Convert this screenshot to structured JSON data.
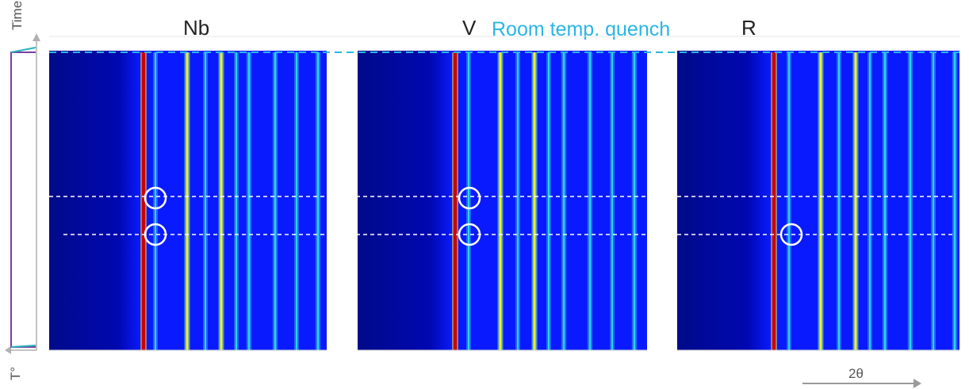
{
  "panels": [
    {
      "id": "nb",
      "label": "Nb",
      "circle_rows": [
        0,
        1
      ]
    },
    {
      "id": "v",
      "label": "V",
      "circle_rows": [
        0,
        1
      ]
    },
    {
      "id": "r",
      "label": "R",
      "circle_rows": [
        1
      ]
    }
  ],
  "annotation": {
    "text": "Room temp. quench",
    "color": "#29b6e6"
  },
  "axes": {
    "time_label": "Time",
    "temperature_label": "T°",
    "two_theta_label": "2θ"
  },
  "colors": {
    "background_dark": "#000066",
    "background_blue": "#0a1aff",
    "peak_hot": "#cc0000",
    "peak_yellow": "#f3ee2a",
    "peak_cyan": "#26d9e6",
    "marker": "#ffffff",
    "profile_line": "#7a3ea0",
    "profile_accent": "#2bb3c0"
  }
}
